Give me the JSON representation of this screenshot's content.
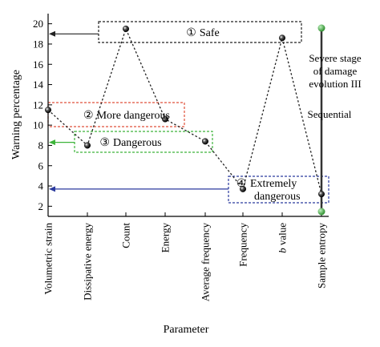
{
  "chart_data": {
    "type": "scatter",
    "xlabel": "Parameter",
    "ylabel": "Warning percentage",
    "ylim": [
      1,
      21
    ],
    "yticks": [
      2,
      4,
      6,
      8,
      10,
      12,
      14,
      16,
      18,
      20
    ],
    "categories": [
      {
        "text": "Volumetric strain"
      },
      {
        "text": "Dissipative energy"
      },
      {
        "text": "Count"
      },
      {
        "text": "Energy"
      },
      {
        "text": "Average frequency"
      },
      {
        "text": "Frequency"
      },
      {
        "text": "b value",
        "italic_prefix": "b",
        "rest": " value"
      },
      {
        "text": "Sample entropy"
      }
    ],
    "values": [
      11.5,
      8.0,
      19.5,
      10.6,
      8.4,
      3.7,
      18.6,
      3.2
    ],
    "line_style": "dotted",
    "grades": [
      {
        "id": "safe",
        "number": "①",
        "label": "Safe",
        "color": "#222222",
        "level": 19
      },
      {
        "id": "more-dangerous",
        "number": "②",
        "label": "More dangerous",
        "color": "#e0503a",
        "level": 11.4
      },
      {
        "id": "dangerous",
        "number": "③",
        "label": "Dangerous",
        "color": "#3db43a",
        "level": 8.3
      },
      {
        "id": "extremely-dangerous",
        "number": "④",
        "label_lines": [
          "Extremely",
          "dangerous"
        ],
        "color": "#2b3a9e",
        "level": 3.7
      }
    ],
    "annotations": {
      "stage": [
        "Severe stage",
        "of damage",
        "evolution III"
      ],
      "sequential": "Sequential"
    },
    "colors": {
      "marker": "#1a1a1a",
      "stage_bar_end": "#3aa83a"
    }
  }
}
